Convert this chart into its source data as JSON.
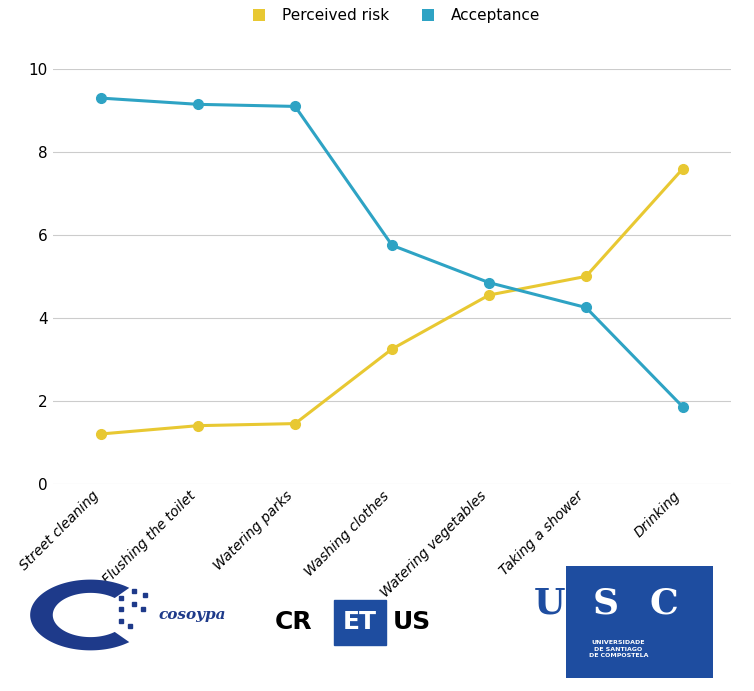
{
  "categories": [
    "Street cleaning",
    "Flushing the toilet",
    "Watering parks",
    "Washing clothes",
    "Watering vegetables",
    "Taking a shower",
    "Drinking"
  ],
  "perceived_risk": [
    1.2,
    1.4,
    1.45,
    3.25,
    4.55,
    5.0,
    7.6
  ],
  "acceptance": [
    9.3,
    9.15,
    9.1,
    5.75,
    4.85,
    4.25,
    1.85
  ],
  "risk_color": "#E8C832",
  "acceptance_color": "#2EA3C4",
  "ylim": [
    0,
    10
  ],
  "yticks": [
    0,
    2,
    4,
    6,
    8,
    10
  ],
  "legend_risk_label": "Perceived risk",
  "legend_acceptance_label": "Acceptance",
  "marker_size": 7,
  "line_width": 2.2,
  "bg_color": "#ffffff",
  "grid_color": "#cccccc",
  "usc_blue": "#1e4da0",
  "usc_text_blue": "#1e4da0",
  "cretus_box_color": "#1e4da0",
  "cosoypa_blue": "#1e3a8a"
}
